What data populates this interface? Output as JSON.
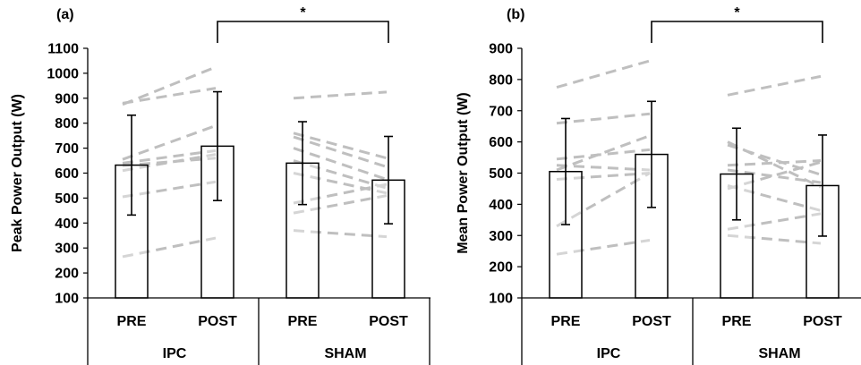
{
  "chart_data": [
    {
      "type": "bar",
      "panel_label": "(a)",
      "ylabel": "Peak Power Output (W)",
      "ylim": [
        100,
        1100
      ],
      "yticks": [
        100,
        200,
        300,
        400,
        500,
        600,
        700,
        800,
        900,
        1000,
        1100
      ],
      "categories": [
        "PRE",
        "POST",
        "PRE",
        "POST"
      ],
      "groups": [
        "IPC",
        "SHAM"
      ],
      "values": [
        632,
        708,
        640,
        572
      ],
      "error": [
        200,
        218,
        166,
        175
      ],
      "significance": {
        "label": "*",
        "from": 1,
        "to": 3
      },
      "individual": [
        {
          "group": 0,
          "pre": 875,
          "post": 1025
        },
        {
          "group": 0,
          "pre": 880,
          "post": 940
        },
        {
          "group": 0,
          "pre": 655,
          "post": 790
        },
        {
          "group": 0,
          "pre": 640,
          "post": 690
        },
        {
          "group": 0,
          "pre": 630,
          "post": 660
        },
        {
          "group": 0,
          "pre": 610,
          "post": 675
        },
        {
          "group": 0,
          "pre": 505,
          "post": 565
        },
        {
          "group": 0,
          "pre": 265,
          "post": 340
        },
        {
          "group": 1,
          "pre": 900,
          "post": 925
        },
        {
          "group": 1,
          "pre": 760,
          "post": 660
        },
        {
          "group": 1,
          "pre": 745,
          "post": 625
        },
        {
          "group": 1,
          "pre": 700,
          "post": 575
        },
        {
          "group": 1,
          "pre": 650,
          "post": 540
        },
        {
          "group": 1,
          "pre": 600,
          "post": 520
        },
        {
          "group": 1,
          "pre": 480,
          "post": 555
        },
        {
          "group": 1,
          "pre": 440,
          "post": 510
        },
        {
          "group": 1,
          "pre": 370,
          "post": 345
        }
      ]
    },
    {
      "type": "bar",
      "panel_label": "(b)",
      "ylabel": "Mean Power Output (W)",
      "ylim": [
        100,
        900
      ],
      "yticks": [
        100,
        200,
        300,
        400,
        500,
        600,
        700,
        800,
        900
      ],
      "categories": [
        "PRE",
        "POST",
        "PRE",
        "POST"
      ],
      "groups": [
        "IPC",
        "SHAM"
      ],
      "values": [
        505,
        560,
        497,
        460
      ],
      "error": [
        170,
        170,
        147,
        162
      ],
      "significance": {
        "label": "*",
        "from": 1,
        "to": 3
      },
      "individual": [
        {
          "group": 0,
          "pre": 775,
          "post": 860
        },
        {
          "group": 0,
          "pre": 660,
          "post": 690
        },
        {
          "group": 0,
          "pre": 545,
          "post": 575
        },
        {
          "group": 0,
          "pre": 525,
          "post": 510
        },
        {
          "group": 0,
          "pre": 510,
          "post": 620
        },
        {
          "group": 0,
          "pre": 480,
          "post": 500
        },
        {
          "group": 0,
          "pre": 330,
          "post": 500
        },
        {
          "group": 0,
          "pre": 240,
          "post": 285
        },
        {
          "group": 1,
          "pre": 750,
          "post": 810
        },
        {
          "group": 1,
          "pre": 600,
          "post": 455
        },
        {
          "group": 1,
          "pre": 590,
          "post": 495
        },
        {
          "group": 1,
          "pre": 525,
          "post": 540
        },
        {
          "group": 1,
          "pre": 510,
          "post": 470
        },
        {
          "group": 1,
          "pre": 460,
          "post": 380
        },
        {
          "group": 1,
          "pre": 450,
          "post": 535
        },
        {
          "group": 1,
          "pre": 320,
          "post": 370
        },
        {
          "group": 1,
          "pre": 300,
          "post": 275
        }
      ]
    }
  ]
}
